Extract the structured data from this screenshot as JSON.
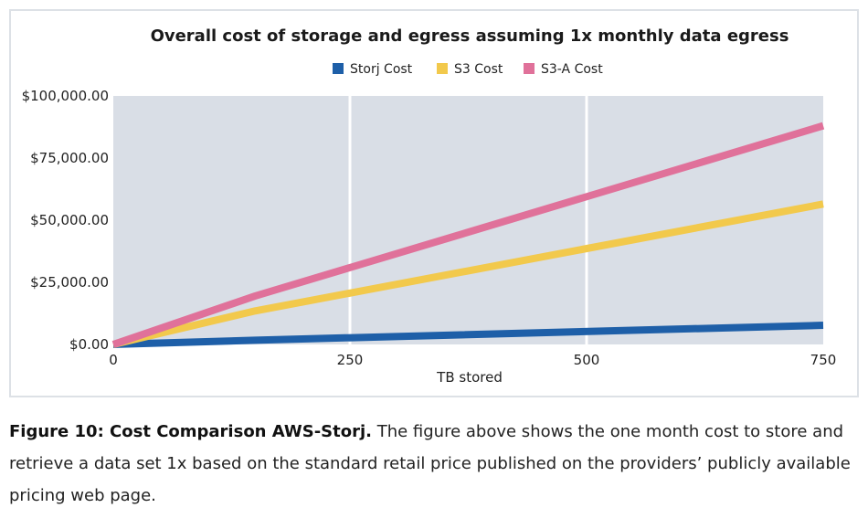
{
  "chart_data": {
    "type": "line",
    "title": "Overall cost of storage and egress assuming 1x monthly data egress",
    "xlabel": "TB stored",
    "ylabel": "",
    "xlim": [
      0,
      750
    ],
    "ylim": [
      0,
      100000
    ],
    "x_ticks": [
      0,
      250,
      500,
      750
    ],
    "x_tick_labels": [
      "0",
      "250",
      "500",
      "750"
    ],
    "y_ticks": [
      0,
      25000,
      50000,
      75000,
      100000
    ],
    "y_tick_labels": [
      "$0.00",
      "$25,000.00",
      "$50,000.00",
      "$75,000.00",
      "$100,000.00"
    ],
    "grid": "vertical",
    "legend_position": "top",
    "series": [
      {
        "name": "Storj Cost",
        "color": "#1e5fa8",
        "points": [
          [
            0,
            0
          ],
          [
            150,
            1700
          ],
          [
            750,
            7700
          ]
        ]
      },
      {
        "name": "S3 Cost",
        "color": "#f2c94c",
        "points": [
          [
            0,
            0
          ],
          [
            150,
            13500
          ],
          [
            750,
            56500
          ]
        ]
      },
      {
        "name": "S3-A Cost",
        "color": "#e0719a",
        "points": [
          [
            0,
            0
          ],
          [
            150,
            19500
          ],
          [
            750,
            88000
          ]
        ]
      }
    ]
  },
  "caption": {
    "label": "Figure 10: Cost Comparison AWS-Storj.",
    "text": " The figure above shows the one month cost to store and retrieve a data set 1x based on the standard retail price published on the providers’ publicly available pricing web page."
  }
}
